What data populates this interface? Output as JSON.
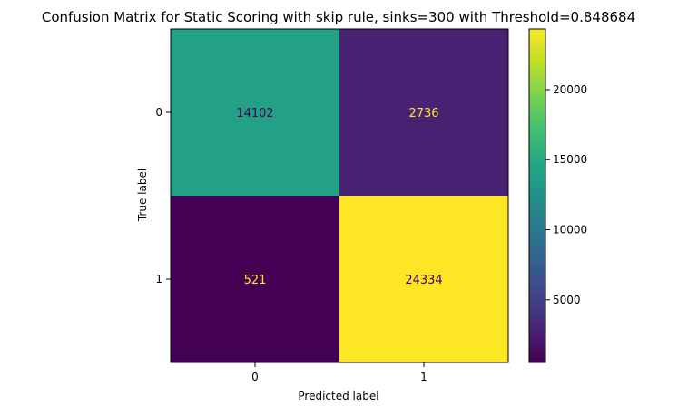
{
  "chart_data": {
    "type": "heatmap",
    "title": "Confusion Matrix for Static Scoring with skip rule, sinks=300 with Threshold=0.848684",
    "xlabel": "Predicted label",
    "ylabel": "True label",
    "x_categories": [
      "0",
      "1"
    ],
    "y_categories": [
      "0",
      "1"
    ],
    "matrix": [
      [
        14102,
        2736
      ],
      [
        521,
        24334
      ]
    ],
    "matrix_labels": [
      [
        "14102",
        "2736"
      ],
      [
        "521",
        "24334"
      ]
    ],
    "colormap": "viridis",
    "color_range": [
      521,
      24334
    ],
    "colorbar_ticks": [
      5000,
      10000,
      15000,
      20000
    ],
    "colorbar_tick_labels": [
      "5000",
      "10000",
      "15000",
      "20000"
    ],
    "text_colors": {
      "on_dark": "#fde725",
      "on_light": "#440154"
    }
  }
}
